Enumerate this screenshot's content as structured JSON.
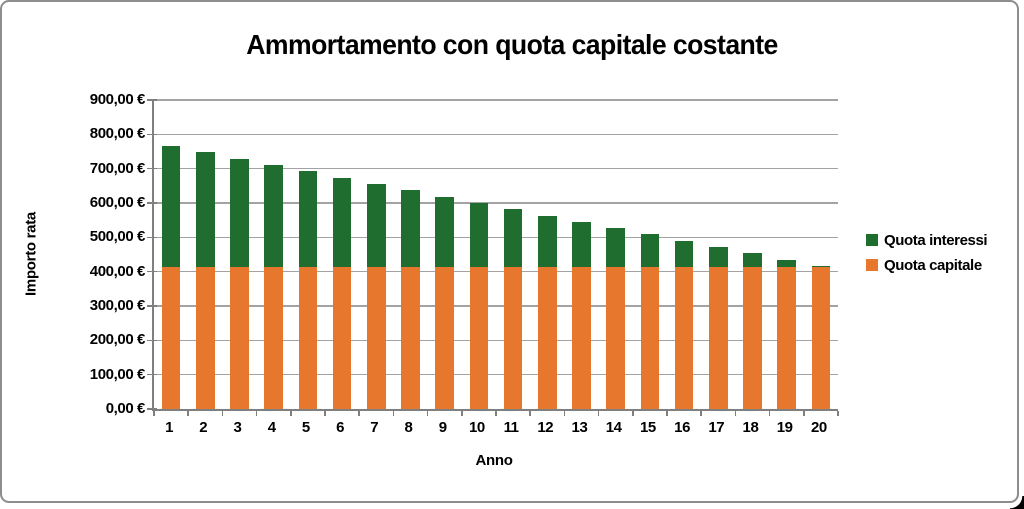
{
  "chart_data": {
    "type": "bar",
    "stacked": true,
    "stack_order_bottom_to_top": [
      "Quota capitale",
      "Quota interessi"
    ],
    "title": "Ammortamento con quota capitale costante",
    "xlabel": "Anno",
    "ylabel": "Importo rata",
    "categories": [
      "1",
      "2",
      "3",
      "4",
      "5",
      "6",
      "7",
      "8",
      "9",
      "10",
      "11",
      "12",
      "13",
      "14",
      "15",
      "16",
      "17",
      "18",
      "19",
      "20"
    ],
    "series": [
      {
        "name": "Quota interessi",
        "color": "#1f6e30",
        "values": [
          353,
          335,
          316,
          298,
          280,
          261,
          243,
          224,
          206,
          188,
          169,
          151,
          133,
          114,
          96,
          77,
          59,
          41,
          22,
          4
        ]
      },
      {
        "name": "Quota capitale",
        "color": "#e8772e",
        "values": [
          412.5,
          412.5,
          412.5,
          412.5,
          412.5,
          412.5,
          412.5,
          412.5,
          412.5,
          412.5,
          412.5,
          412.5,
          412.5,
          412.5,
          412.5,
          412.5,
          412.5,
          412.5,
          412.5,
          412.5
        ]
      }
    ],
    "ylim": [
      0,
      900
    ],
    "ytick_step": 100,
    "ytick_labels": [
      "0,00 €",
      "100,00 €",
      "200,00 €",
      "300,00 €",
      "400,00 €",
      "500,00 €",
      "600,00 €",
      "700,00 €",
      "800,00 €",
      "900,00 €"
    ],
    "grid": true,
    "legend_position": "right",
    "axis_color": "#7f7f7f",
    "gridline_color": "#a3a3a3",
    "frame_color": "#8d8d8d"
  }
}
